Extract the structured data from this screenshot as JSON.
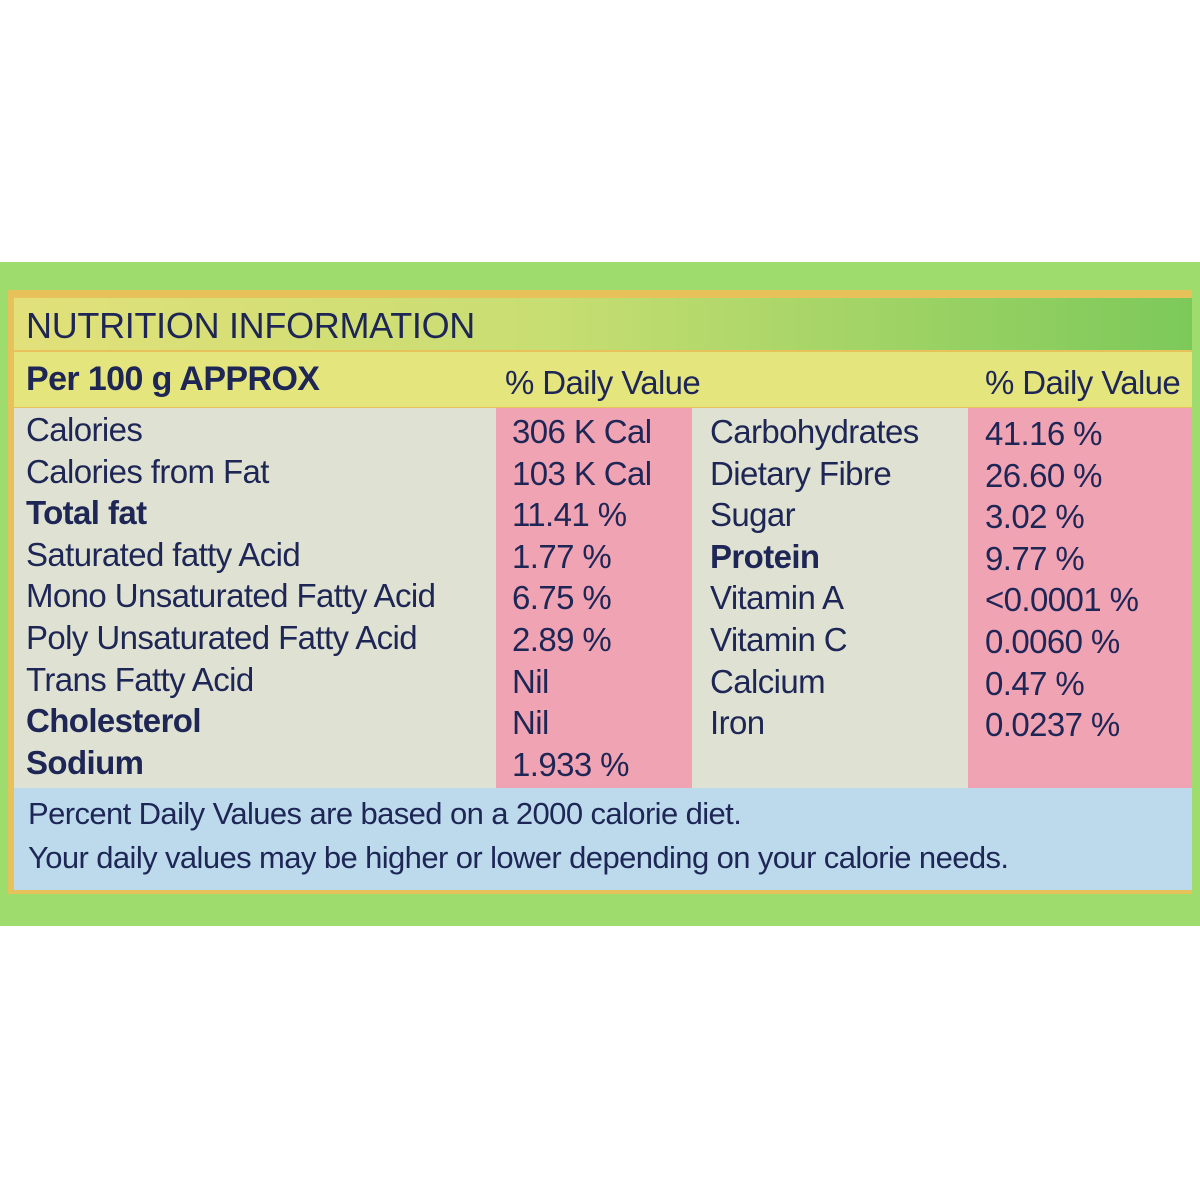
{
  "header": {
    "title": "NUTRITION INFORMATION",
    "per": "Per 100 g APPROX",
    "dv_left": "% Daily Value",
    "dv_right": "% Daily Value"
  },
  "left_rows": [
    {
      "label": "Calories",
      "value": "306 K Cal"
    },
    {
      "label": "Calories from Fat",
      "value": "103 K Cal"
    },
    {
      "label": "Total fat",
      "value": "11.41 %"
    },
    {
      "label": "Saturated fatty Acid",
      "value": "1.77 %"
    },
    {
      "label": "Mono Unsaturated Fatty Acid",
      "value": "6.75 %"
    },
    {
      "label": "Poly Unsaturated Fatty Acid",
      "value": "2.89 %"
    },
    {
      "label": "Trans Fatty Acid",
      "value": "Nil"
    },
    {
      "label": "Cholesterol",
      "value": "Nil"
    },
    {
      "label": "Sodium",
      "value": "1.933 %"
    }
  ],
  "right_rows": [
    {
      "label": "Carbohydrates",
      "value": "41.16 %"
    },
    {
      "label": "Dietary Fibre",
      "value": "26.60 %"
    },
    {
      "label": "Sugar",
      "value": "3.02 %"
    },
    {
      "label": "Protein",
      "value": "9.77 %"
    },
    {
      "label": "Vitamin A",
      "value": "<0.0001 %"
    },
    {
      "label": "Vitamin C",
      "value": "0.0060 %"
    },
    {
      "label": "Calcium",
      "value": "0.47 %"
    },
    {
      "label": "Iron",
      "value": "0.0237 %"
    }
  ],
  "footer": [
    "Percent Daily Values are based on a 2000 calorie diet.",
    "Your daily values may be higher or lower depending on your calorie needs."
  ]
}
